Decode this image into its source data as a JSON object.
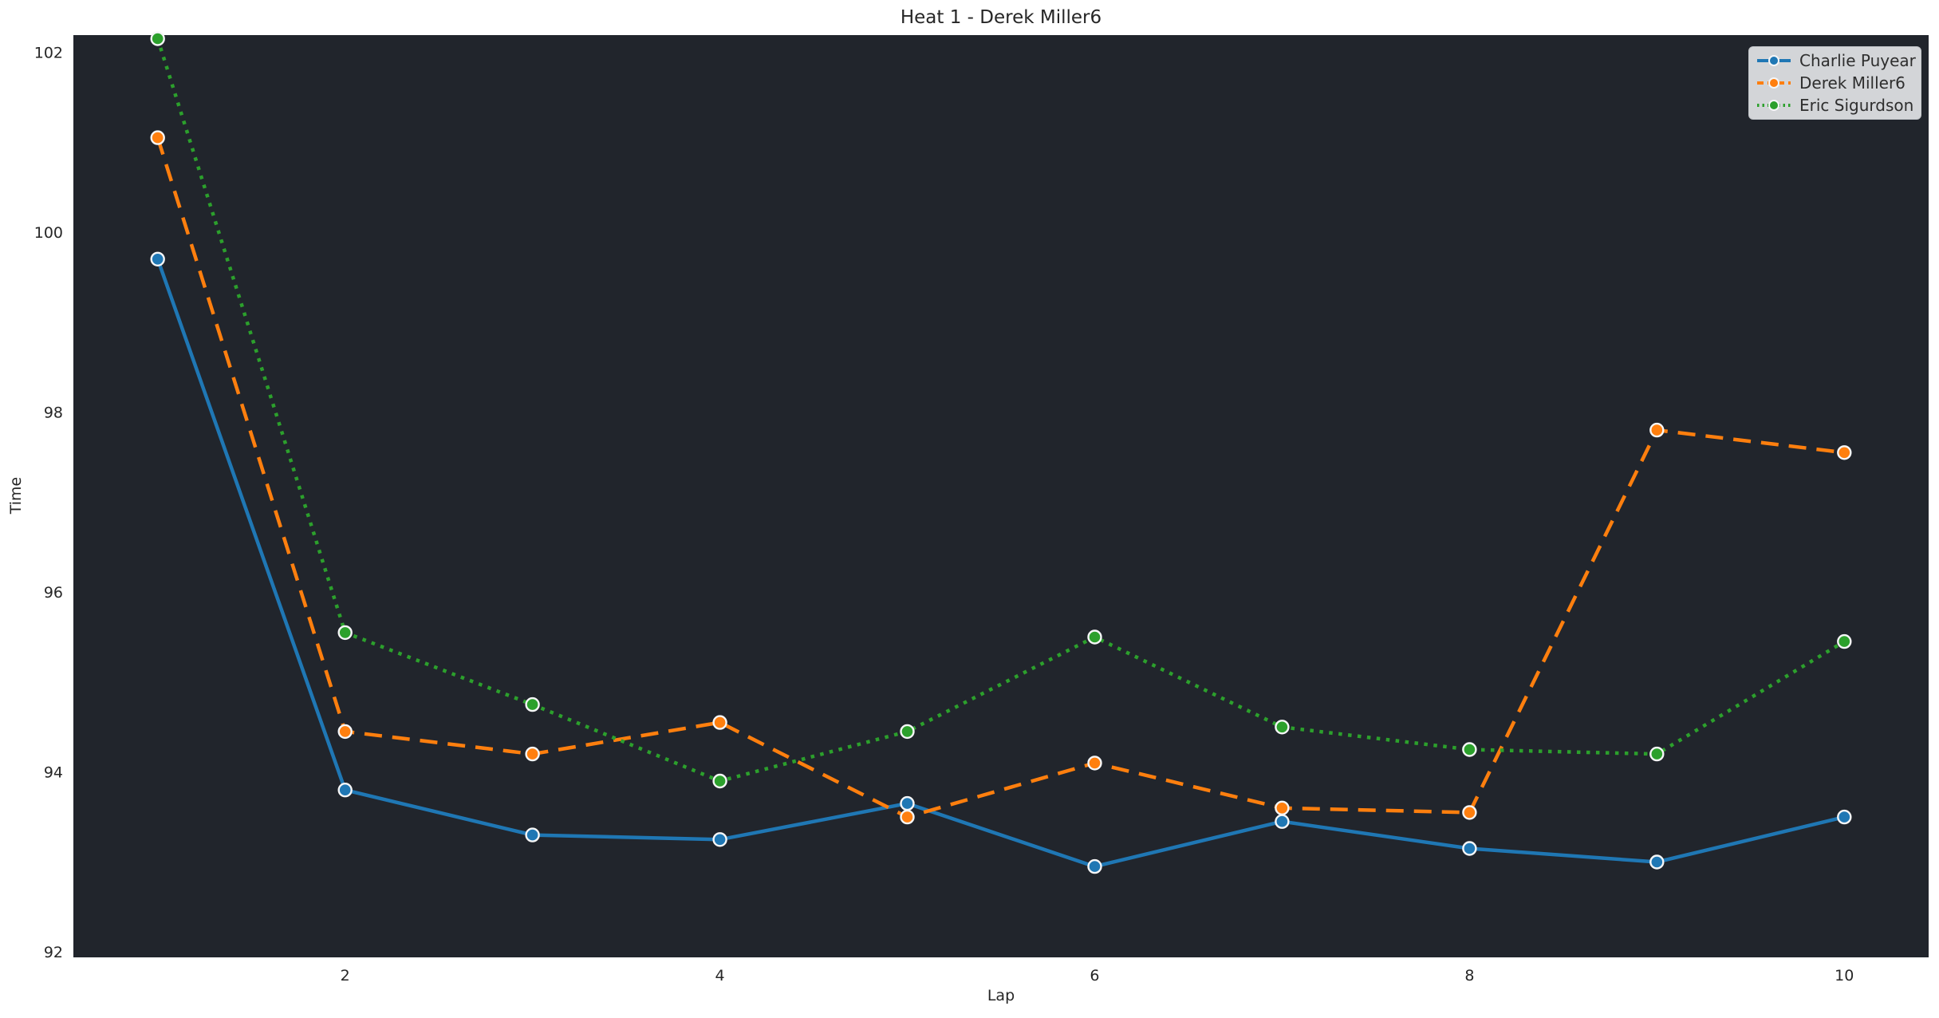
{
  "figure": {
    "background": "#ffffff",
    "plot_background": "#21252c",
    "text_color": "#262626",
    "legend_background": "#d3d5d8",
    "marker_edge_color": "#f5f6f7"
  },
  "chart_data": {
    "type": "line",
    "title": "Heat 1 - Derek Miller6",
    "xlabel": "Lap",
    "ylabel": "Time",
    "grid": false,
    "legend_position": "upper right",
    "x": [
      1,
      2,
      3,
      4,
      5,
      6,
      7,
      8,
      9,
      10
    ],
    "xticks": [
      2,
      4,
      6,
      8,
      10
    ],
    "yticks": [
      92,
      94,
      96,
      98,
      100,
      102
    ],
    "xlim": [
      0.55,
      10.45
    ],
    "ylim": [
      91.94,
      102.19
    ],
    "series": [
      {
        "name": "Charlie Puyear",
        "color": "#1f77b4",
        "line_style": "solid",
        "values": [
          99.7,
          93.8,
          93.3,
          93.25,
          93.65,
          92.95,
          93.45,
          93.15,
          93.0,
          93.5
        ]
      },
      {
        "name": "Derek Miller6",
        "color": "#ff7f0e",
        "line_style": "dashed",
        "values": [
          101.05,
          94.45,
          94.2,
          94.55,
          93.5,
          94.1,
          93.6,
          93.55,
          97.8,
          97.55
        ]
      },
      {
        "name": "Eric Sigurdson",
        "color": "#2ca02c",
        "line_style": "dotted",
        "values": [
          102.15,
          95.55,
          94.75,
          93.9,
          94.45,
          95.5,
          94.5,
          94.25,
          94.2,
          95.45
        ]
      }
    ]
  }
}
